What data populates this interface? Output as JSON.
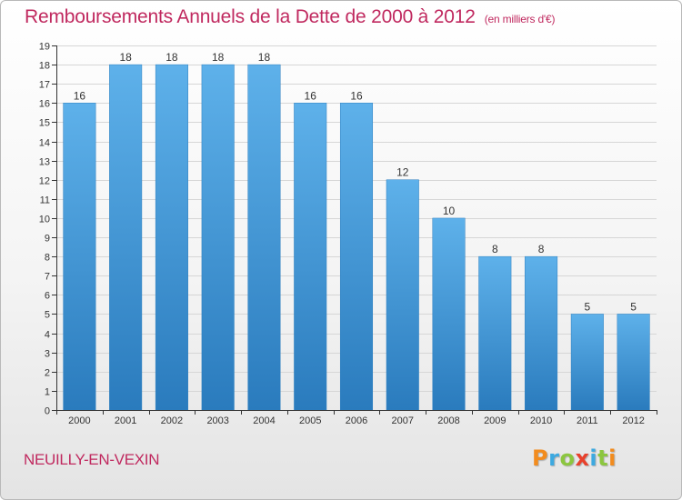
{
  "title": "Remboursements Annuels de la Dette de 2000 à 2012",
  "subtitle": "(en milliers d'€)",
  "commune": "NEUILLY-EN-VEXIN",
  "logo": {
    "letters": [
      {
        "ch": "P",
        "color": "#f28c1e"
      },
      {
        "ch": "r",
        "color": "#3da9e0"
      },
      {
        "ch": "o",
        "color": "#8cc63f"
      },
      {
        "ch": "x",
        "color": "#e8412c"
      },
      {
        "ch": "i",
        "color": "#3da9e0"
      },
      {
        "ch": "t",
        "color": "#8cc63f"
      },
      {
        "ch": "i",
        "color": "#f28c1e"
      }
    ]
  },
  "colors": {
    "title": "#c0295f",
    "bar_top": "#5eb1ea",
    "bar_bottom": "#2a7bbd",
    "axis": "#333333"
  },
  "chart_data": {
    "type": "bar",
    "title": "Remboursements Annuels de la Dette de 2000 à 2012",
    "xlabel": "",
    "ylabel": "(en milliers d'€)",
    "ylim": [
      0,
      19
    ],
    "yticks": [
      0,
      1,
      2,
      3,
      4,
      5,
      6,
      7,
      8,
      9,
      10,
      11,
      12,
      13,
      14,
      15,
      16,
      17,
      18,
      19
    ],
    "categories": [
      "2000",
      "2001",
      "2002",
      "2003",
      "2004",
      "2005",
      "2006",
      "2007",
      "2008",
      "2009",
      "2010",
      "2011",
      "2012"
    ],
    "values": [
      16,
      18,
      18,
      18,
      18,
      16,
      16,
      12,
      10,
      8,
      8,
      5,
      5
    ],
    "grid": true
  }
}
